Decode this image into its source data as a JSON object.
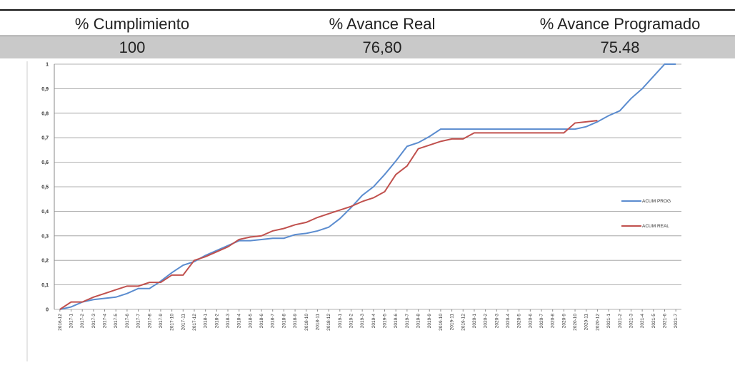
{
  "table": {
    "headers": [
      "% Cumplimiento",
      "% Avance Real",
      "% Avance Programado"
    ],
    "values": [
      "100",
      "76,80",
      "75.48"
    ]
  },
  "chart_data": {
    "type": "line",
    "categories": [
      "2016-12",
      "2017-1",
      "2017-2",
      "2017-3",
      "2017-4",
      "2017-5",
      "2017-6",
      "2017-7",
      "2017-8",
      "2017-9",
      "2017-10",
      "2017-11",
      "2017-12",
      "2018-1",
      "2018-2",
      "2018-3",
      "2018-4",
      "2018-5",
      "2018-6",
      "2018-7",
      "2018-8",
      "2018-9",
      "2018-10",
      "2018-11",
      "2018-12",
      "2019-1",
      "2019-2",
      "2019-3",
      "2019-4",
      "2019-5",
      "2019-6",
      "2019-7",
      "2019-8",
      "2019-9",
      "2019-10",
      "2019-11",
      "2019-12",
      "2020-1",
      "2020-2",
      "2020-3",
      "2020-4",
      "2020-5",
      "2020-6",
      "2020-7",
      "2020-8",
      "2020-9",
      "2020-10",
      "2020-11",
      "2020-12",
      "2021-1",
      "2021-2",
      "2021-3",
      "2021-4",
      "2021-5",
      "2021-6",
      "2021-7"
    ],
    "series": [
      {
        "name": "ACUM PROG",
        "color": "#5b8ccf",
        "values": [
          0,
          0.01,
          0.03,
          0.04,
          0.045,
          0.05,
          0.065,
          0.085,
          0.085,
          0.115,
          0.15,
          0.18,
          0.195,
          0.22,
          0.24,
          0.26,
          0.28,
          0.28,
          0.285,
          0.29,
          0.29,
          0.305,
          0.31,
          0.32,
          0.335,
          0.37,
          0.415,
          0.465,
          0.5,
          0.55,
          0.605,
          0.665,
          0.68,
          0.705,
          0.735,
          0.735,
          0.735,
          0.735,
          0.735,
          0.735,
          0.735,
          0.735,
          0.735,
          0.735,
          0.735,
          0.735,
          0.735,
          0.745,
          0.765,
          0.79,
          0.81,
          0.86,
          0.9,
          0.95,
          1,
          1
        ]
      },
      {
        "name": "ACUM REAL",
        "color": "#c0504d",
        "values": [
          0,
          0.03,
          0.03,
          0.05,
          0.065,
          0.08,
          0.095,
          0.095,
          0.11,
          0.11,
          0.14,
          0.14,
          0.2,
          0.215,
          0.235,
          0.255,
          0.285,
          0.295,
          0.3,
          0.32,
          0.33,
          0.345,
          0.355,
          0.375,
          0.39,
          0.405,
          0.42,
          0.44,
          0.455,
          0.48,
          0.55,
          0.585,
          0.655,
          0.67,
          0.685,
          0.695,
          0.695,
          0.72,
          0.72,
          0.72,
          0.72,
          0.72,
          0.72,
          0.72,
          0.72,
          0.72,
          0.76,
          0.765,
          0.77,
          null,
          null,
          null,
          null,
          null,
          null,
          null
        ]
      }
    ],
    "ylim": [
      0,
      1
    ],
    "yticks": [
      0,
      {
        "value": 0.1,
        "label": "0,1"
      },
      {
        "value": 0.2,
        "label": "0,2"
      },
      {
        "value": 0.3,
        "label": "0,3"
      },
      {
        "value": 0.4,
        "label": "0,4"
      },
      {
        "value": 0.5,
        "label": "0,5"
      },
      {
        "value": 0.6,
        "label": "0,6"
      },
      {
        "value": 0.7,
        "label": "0,7"
      },
      {
        "value": 0.8,
        "label": "0,8"
      },
      {
        "value": 0.9,
        "label": "0,9"
      },
      1
    ],
    "grid": true
  }
}
